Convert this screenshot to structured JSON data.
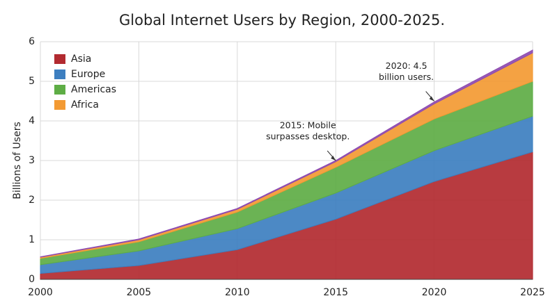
{
  "chart_data": {
    "type": "stacked_area",
    "title": "Global Internet Users by Region, 2000-2025.",
    "y_label": "Billions of Users",
    "x": [
      2000,
      2005,
      2010,
      2015,
      2020,
      2025
    ],
    "xlim": [
      2000,
      2025
    ],
    "xticks": [
      2000,
      2005,
      2010,
      2015,
      2020,
      2025
    ],
    "ylim": [
      0,
      6
    ],
    "yticks": [
      0,
      1,
      2,
      3,
      4,
      5,
      6
    ],
    "grid": true,
    "legend": "upper left",
    "series": [
      {
        "name": "Asia",
        "color": "#b22a30",
        "values": [
          0.15,
          0.35,
          0.75,
          1.52,
          2.47,
          3.22
        ]
      },
      {
        "name": "Europe",
        "color": "#3d7fc0",
        "values": [
          0.22,
          0.37,
          0.53,
          0.66,
          0.78,
          0.9
        ]
      },
      {
        "name": "Americas",
        "color": "#5ead45",
        "values": [
          0.16,
          0.23,
          0.42,
          0.65,
          0.8,
          0.88
        ]
      },
      {
        "name": "Africa",
        "color": "#f39a33",
        "values": [
          0.03,
          0.05,
          0.07,
          0.14,
          0.38,
          0.72
        ]
      },
      {
        "color": "#8e4bb0",
        "values": [
          0.01,
          0.02,
          0.02,
          0.03,
          0.05,
          0.07
        ]
      }
    ],
    "annotations": [
      {
        "lines": [
          "2015: Mobile",
          "surpasses desktop."
        ],
        "x": 2015,
        "y": 3.0
      },
      {
        "lines": [
          "2020: 4.5",
          "billion users."
        ],
        "x": 2020,
        "y": 4.5
      }
    ]
  }
}
